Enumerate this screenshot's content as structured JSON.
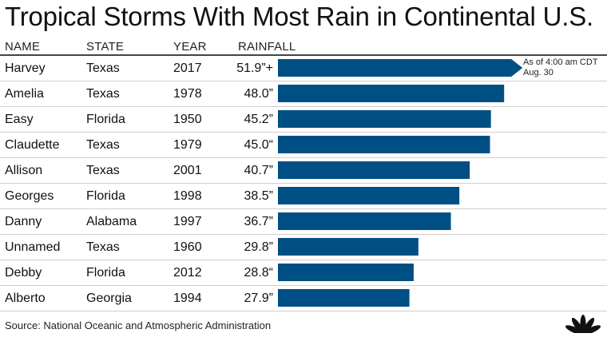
{
  "title": "Tropical Storms With Most Rain in Continental U.S.",
  "headers": {
    "name": "NAME",
    "state": "STATE",
    "year": "YEAR",
    "rainfall": "RAINFALL"
  },
  "annotation": {
    "line1": "As of 4:00 am CDT",
    "line2": "Aug. 30"
  },
  "source": "Source: National Oceanic and Atmospheric Administration",
  "colors": {
    "bar": "#004f84",
    "rule": "#444444",
    "divider": "#cfcfcf"
  },
  "rows": [
    {
      "name": "Harvey",
      "state": "Texas",
      "year": "2017",
      "rainfall": "51.9”+"
    },
    {
      "name": "Amelia",
      "state": "Texas",
      "year": "1978",
      "rainfall": "48.0”"
    },
    {
      "name": "Easy",
      "state": "Florida",
      "year": "1950",
      "rainfall": "45.2”"
    },
    {
      "name": "Claudette",
      "state": "Texas",
      "year": "1979",
      "rainfall": "45.0“"
    },
    {
      "name": "Allison",
      "state": "Texas",
      "year": "2001",
      "rainfall": "40.7”"
    },
    {
      "name": "Georges",
      "state": "Florida",
      "year": "1998",
      "rainfall": "38.5”"
    },
    {
      "name": "Danny",
      "state": "Alabama",
      "year": "1997",
      "rainfall": "36.7”"
    },
    {
      "name": "Unnamed",
      "state": "Texas",
      "year": "1960",
      "rainfall": "29.8”"
    },
    {
      "name": "Debby",
      "state": "Florida",
      "year": "2012",
      "rainfall": "28.8“"
    },
    {
      "name": "Alberto",
      "state": "Georgia",
      "year": "1994",
      "rainfall": "27.9”"
    }
  ],
  "chart_data": {
    "type": "bar",
    "orientation": "horizontal",
    "title": "Tropical Storms With Most Rain in Continental U.S.",
    "categories": [
      "Harvey",
      "Amelia",
      "Easy",
      "Claudette",
      "Allison",
      "Georges",
      "Danny",
      "Unnamed",
      "Debby",
      "Alberto"
    ],
    "values": [
      51.9,
      48.0,
      45.2,
      45.0,
      40.7,
      38.5,
      36.7,
      29.8,
      28.8,
      27.9
    ],
    "unit": "inches",
    "xlim": [
      0,
      52
    ],
    "grid": false,
    "legend": "none",
    "annotations": [
      "As of 4:00 am CDT Aug. 30"
    ],
    "arrow_on_first_bar": true
  }
}
